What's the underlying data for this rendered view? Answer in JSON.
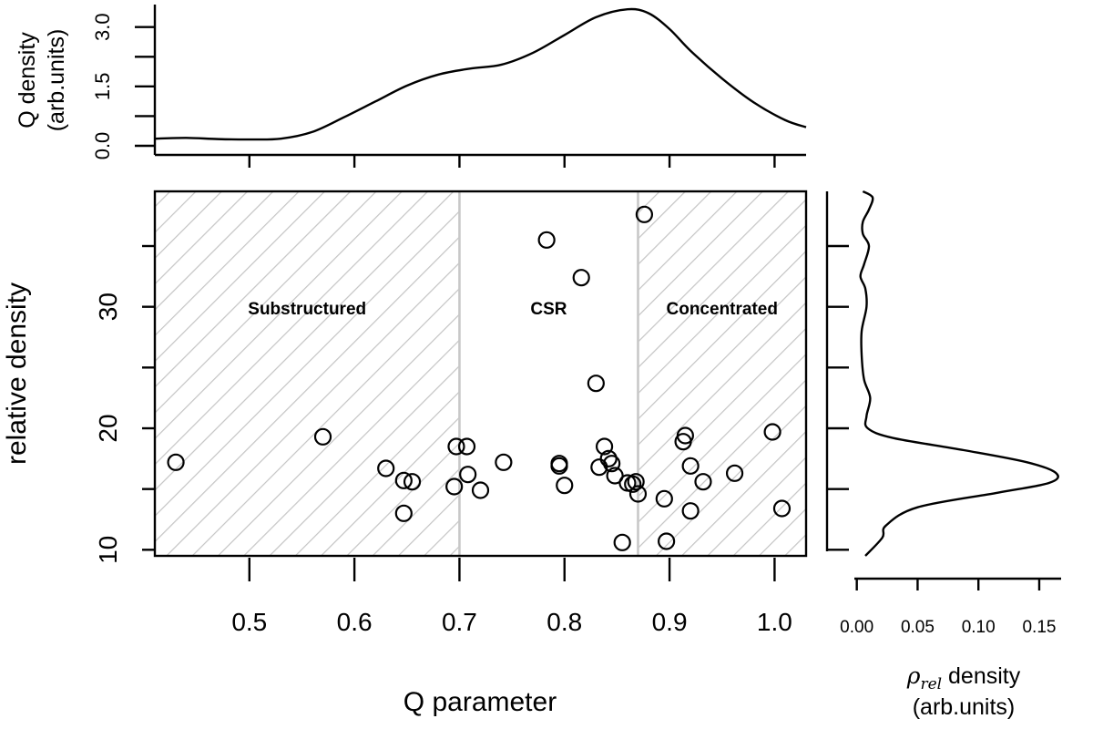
{
  "chart_data": [
    {
      "type": "scatter",
      "name": "main",
      "xlabel": "Q parameter",
      "ylabel": "relative density",
      "xlim": [
        0.41,
        1.03
      ],
      "ylim": [
        9.5,
        39.5
      ],
      "xticks": [
        0.5,
        0.6,
        0.7,
        0.8,
        0.9,
        1.0
      ],
      "xtick_labels": [
        "0.5",
        "0.6",
        "0.7",
        "0.8",
        "0.9",
        "1.0"
      ],
      "yticks": [
        10,
        20,
        30
      ],
      "ytick_labels": [
        "10",
        "20",
        "30"
      ],
      "regions": [
        {
          "label": "Substructured",
          "x_from": 0.41,
          "x_to": 0.7,
          "hatched": true
        },
        {
          "label": "CSR",
          "x_from": 0.7,
          "x_to": 0.87,
          "hatched": false
        },
        {
          "label": "Concentrated",
          "x_from": 0.87,
          "x_to": 1.03,
          "hatched": true
        }
      ],
      "points": [
        [
          0.43,
          17.2
        ],
        [
          0.57,
          19.3
        ],
        [
          0.63,
          16.7
        ],
        [
          0.647,
          15.7
        ],
        [
          0.655,
          15.6
        ],
        [
          0.647,
          13.0
        ],
        [
          0.697,
          18.5
        ],
        [
          0.695,
          15.2
        ],
        [
          0.707,
          18.5
        ],
        [
          0.708,
          16.2
        ],
        [
          0.72,
          14.9
        ],
        [
          0.742,
          17.2
        ],
        [
          0.783,
          35.5
        ],
        [
          0.795,
          17.1
        ],
        [
          0.795,
          16.9
        ],
        [
          0.8,
          15.3
        ],
        [
          0.816,
          32.4
        ],
        [
          0.83,
          23.7
        ],
        [
          0.833,
          16.8
        ],
        [
          0.838,
          18.5
        ],
        [
          0.842,
          17.5
        ],
        [
          0.845,
          17.1
        ],
        [
          0.848,
          16.1
        ],
        [
          0.855,
          10.6
        ],
        [
          0.86,
          15.5
        ],
        [
          0.865,
          15.4
        ],
        [
          0.868,
          15.6
        ],
        [
          0.87,
          14.6
        ],
        [
          0.876,
          37.6
        ],
        [
          0.895,
          14.2
        ],
        [
          0.897,
          10.7
        ],
        [
          0.913,
          18.9
        ],
        [
          0.915,
          19.4
        ],
        [
          0.92,
          16.9
        ],
        [
          0.92,
          13.2
        ],
        [
          0.932,
          15.6
        ],
        [
          0.962,
          16.3
        ],
        [
          0.998,
          19.7
        ],
        [
          1.007,
          13.4
        ]
      ]
    },
    {
      "type": "line",
      "name": "top-density",
      "ylabel_line1": "Q density",
      "ylabel_line2": "(arb.units)",
      "ylim": [
        0,
        3.5
      ],
      "yticks": [
        0.0,
        1.5,
        3.0
      ],
      "ytick_labels": [
        "0.0",
        "1.5",
        "3.0"
      ],
      "x": [
        0.41,
        0.44,
        0.47,
        0.5,
        0.53,
        0.56,
        0.59,
        0.62,
        0.65,
        0.68,
        0.71,
        0.74,
        0.77,
        0.8,
        0.83,
        0.86,
        0.88,
        0.9,
        0.92,
        0.95,
        0.98,
        1.01,
        1.03
      ],
      "y": [
        0.18,
        0.2,
        0.17,
        0.16,
        0.18,
        0.35,
        0.72,
        1.12,
        1.52,
        1.8,
        1.95,
        2.05,
        2.35,
        2.8,
        3.25,
        3.45,
        3.35,
        2.95,
        2.4,
        1.7,
        1.1,
        0.65,
        0.47
      ]
    },
    {
      "type": "line",
      "name": "side-density",
      "xlabel_line1": "ρ",
      "xlabel_sub": "rel",
      "xlabel_rest": " density",
      "xlabel_line2": "(arb.units)",
      "xlim": [
        -0.002,
        0.168
      ],
      "xticks": [
        0.0,
        0.05,
        0.1,
        0.15
      ],
      "xtick_labels": [
        "0.00",
        "0.05",
        "0.10",
        "0.15"
      ],
      "density": [
        0.007,
        0.021,
        0.024,
        0.05,
        0.116,
        0.158,
        0.164,
        0.14,
        0.088,
        0.03,
        0.009,
        0.008,
        0.011,
        0.006,
        0.004,
        0.004,
        0.008,
        0.007,
        0.003,
        0.006,
        0.01,
        0.005,
        0.005,
        0.01,
        0.013,
        0.005
      ],
      "rel_density": [
        9.5,
        11.0,
        12.0,
        13.5,
        14.7,
        15.5,
        16.3,
        17.2,
        18.2,
        19.2,
        20.0,
        21.0,
        22.5,
        24.0,
        26.0,
        28.0,
        30.0,
        31.5,
        32.5,
        33.5,
        35.0,
        36.0,
        37.0,
        38.0,
        39.0,
        39.5
      ]
    }
  ]
}
